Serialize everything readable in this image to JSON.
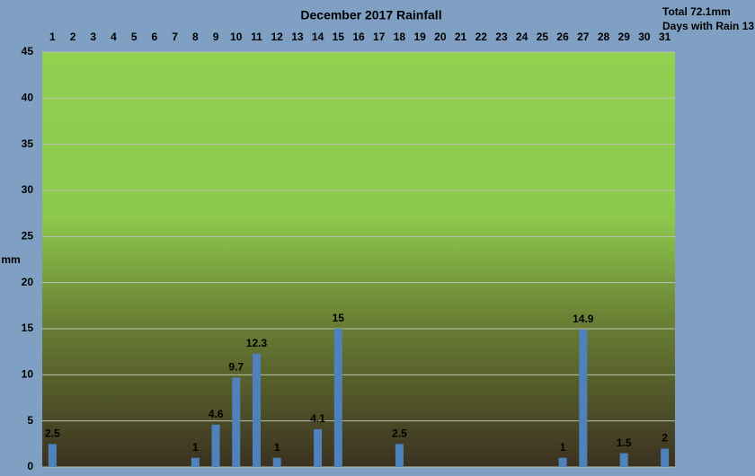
{
  "chart_data": {
    "type": "bar",
    "title": "December 2017 Rainfall",
    "annotations": [
      "Total 72.1mm",
      "Days with Rain 13"
    ],
    "y_label": "mm",
    "categories": [
      "1",
      "2",
      "3",
      "4",
      "5",
      "6",
      "7",
      "8",
      "9",
      "10",
      "11",
      "12",
      "13",
      "14",
      "15",
      "16",
      "17",
      "18",
      "19",
      "20",
      "21",
      "22",
      "23",
      "24",
      "25",
      "26",
      "27",
      "28",
      "29",
      "30",
      "31"
    ],
    "values": [
      2.5,
      0,
      0,
      0,
      0,
      0,
      0,
      1,
      4.6,
      9.7,
      12.3,
      1,
      0,
      4.1,
      15,
      0,
      0,
      2.5,
      0,
      0,
      0,
      0,
      0,
      0,
      0,
      1,
      14.9,
      0,
      1.5,
      0,
      2
    ],
    "color": "#4f81bd",
    "ylim": [
      0,
      45
    ],
    "yticks": [
      0,
      5,
      10,
      15,
      20,
      25,
      30,
      35,
      40,
      45
    ],
    "grid": true
  }
}
